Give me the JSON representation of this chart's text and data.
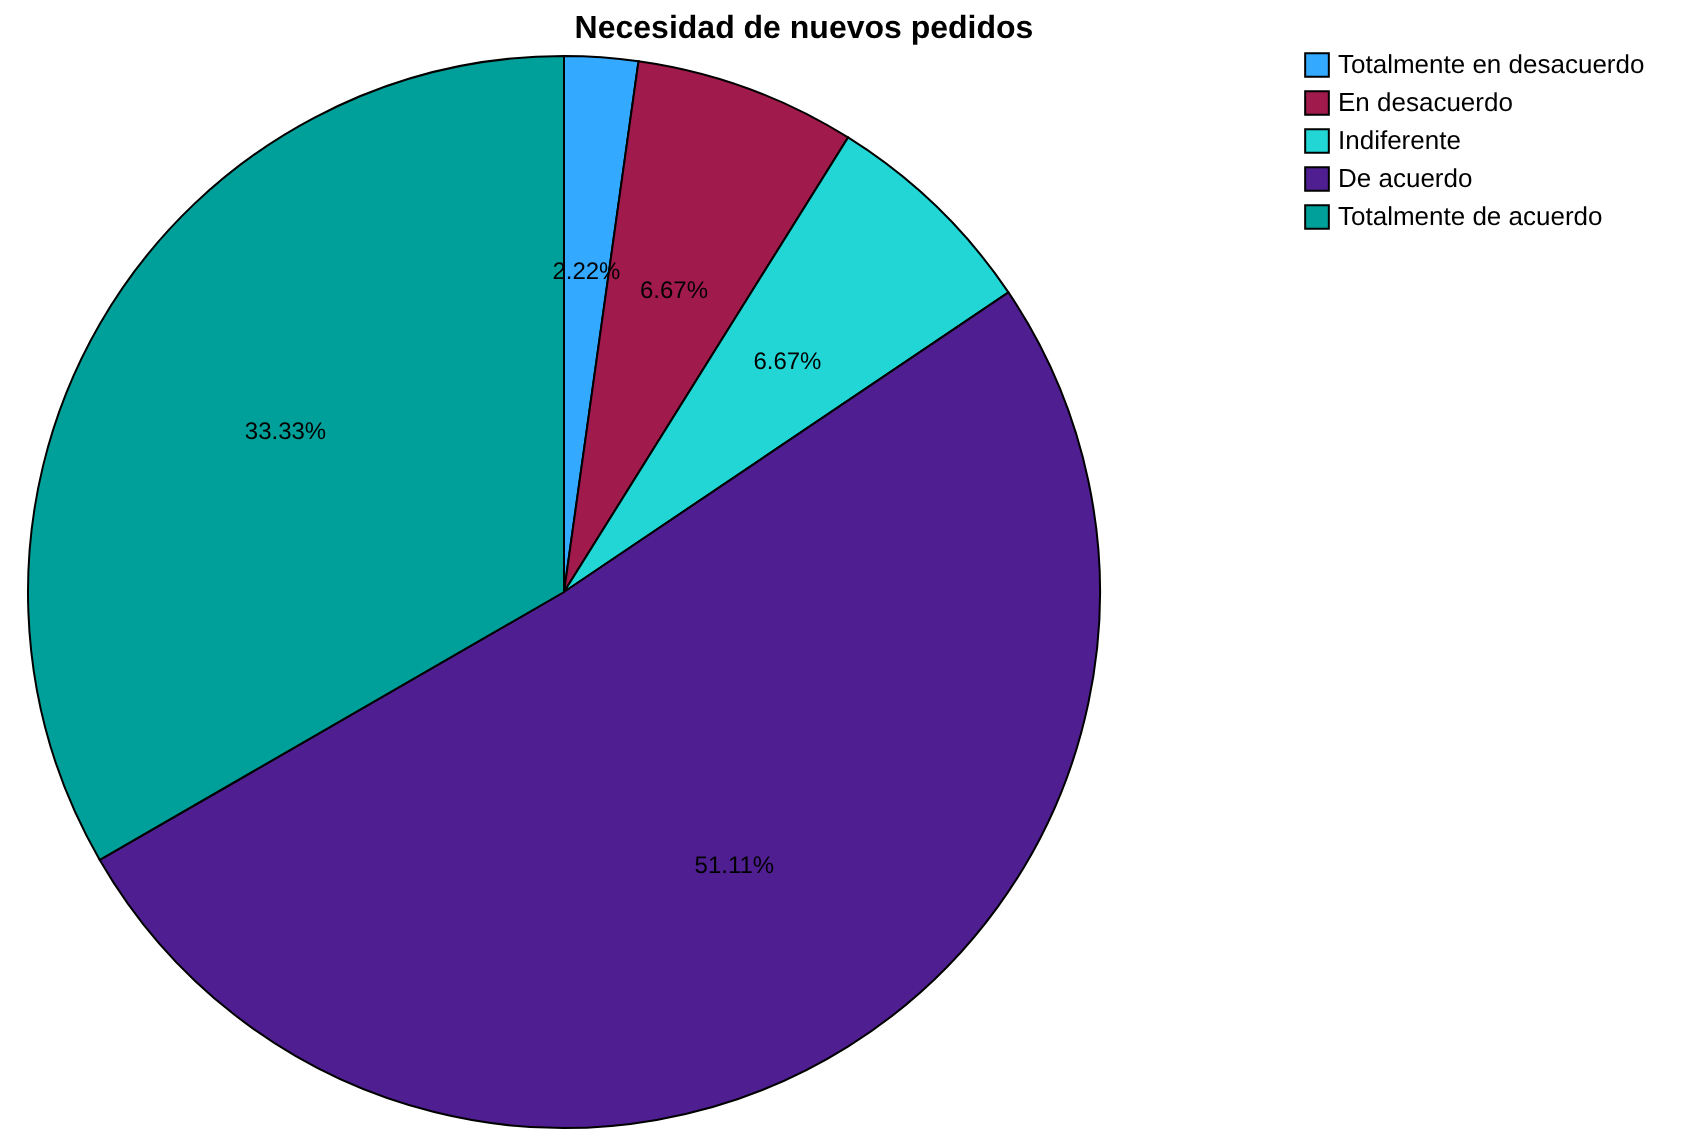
{
  "chart_data": {
    "type": "pie",
    "title": "Necesidad de nuevos pedidos",
    "categories": [
      "Totalmente en desacuerdo",
      "En desacuerdo",
      "Indiferente",
      "De acuerdo",
      "Totalmente de acuerdo"
    ],
    "values": [
      2.22,
      6.67,
      6.67,
      51.11,
      33.33
    ],
    "colors": [
      "#33aaff",
      "#a11a4c",
      "#22d6d6",
      "#4f1f91",
      "#00a09a"
    ],
    "value_labels": [
      "2.22%",
      "6.67%",
      "6.67%",
      "51.11%",
      "33.33%"
    ],
    "legend": "top right"
  }
}
